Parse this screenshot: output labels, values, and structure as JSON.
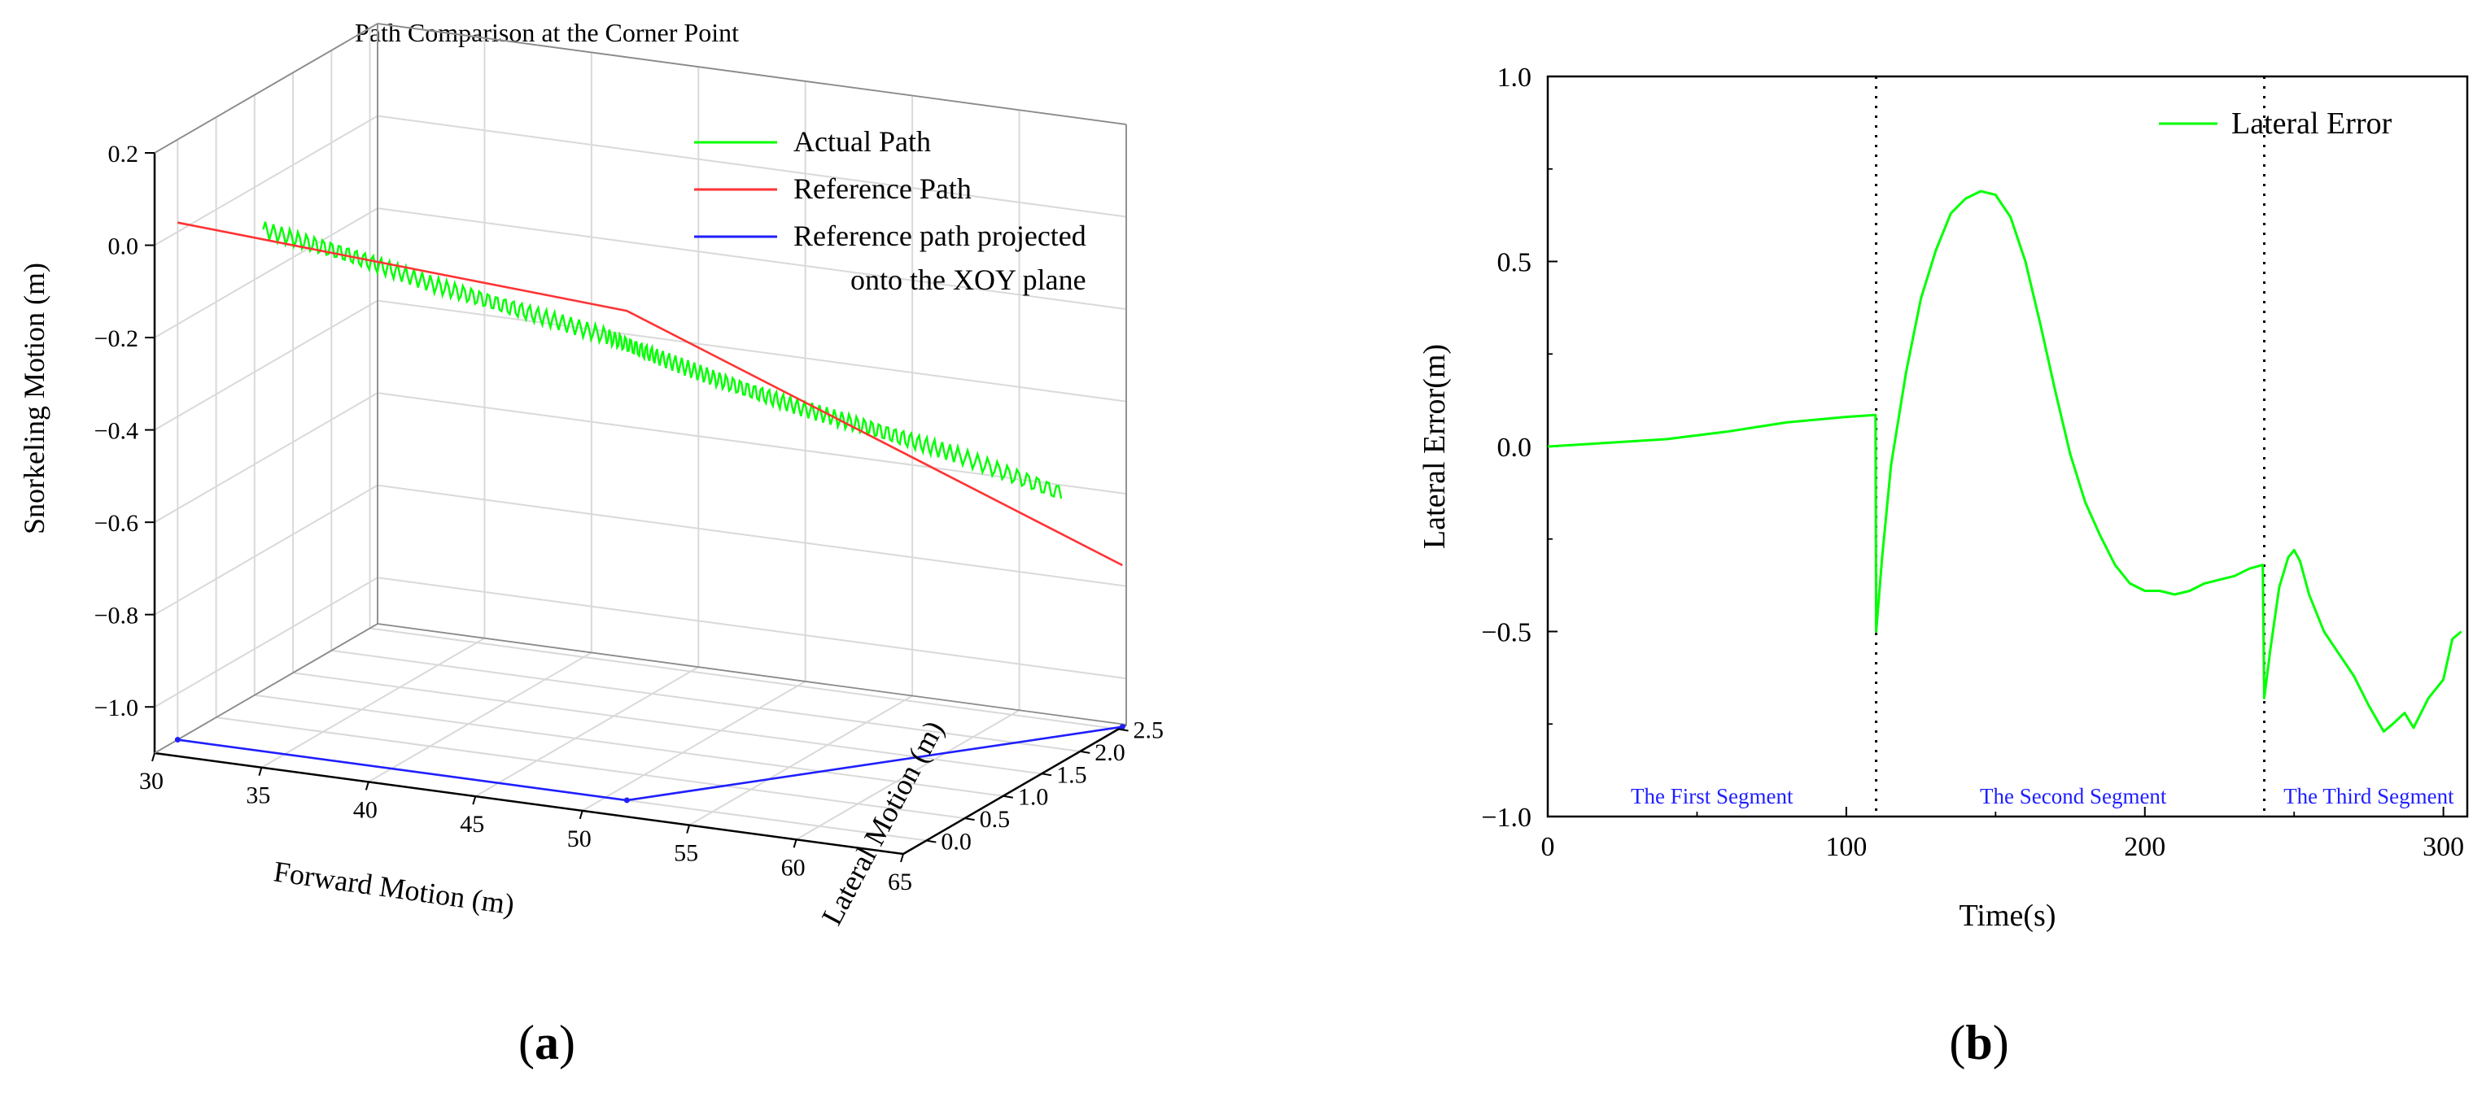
{
  "panels": {
    "a_label_open": "(",
    "a_label_letter": "a",
    "a_label_close": ")",
    "b_label_open": "(",
    "b_label_letter": "b",
    "b_label_close": ")"
  },
  "chart_data": [
    {
      "id": "a",
      "type": "line3d",
      "title": "Path Comparison at the Corner Point",
      "xlabel": "Forward Motion (m)",
      "ylabel": "Lateral Motion (m)",
      "zlabel": "Snorkeling Motion (m)",
      "xlim": [
        30,
        65
      ],
      "ylim": [
        -0.3,
        2.6
      ],
      "zlim": [
        -1.1,
        0.2
      ],
      "xticks": [
        30,
        35,
        40,
        45,
        50,
        55,
        60,
        65
      ],
      "yticks": [
        0.0,
        0.5,
        1.0,
        1.5,
        2.0,
        2.5
      ],
      "zticks": [
        0.2,
        0.0,
        -0.2,
        -0.4,
        -0.6,
        -0.8,
        -1.0
      ],
      "legend_position": "top-right",
      "grid": true,
      "series": [
        {
          "name": "Actual Path",
          "color": "#00ff00",
          "x": [
            34,
            38,
            42,
            46,
            50,
            52,
            54,
            56,
            58,
            60,
            62.5
          ],
          "y": [
            0.0,
            0.0,
            0.0,
            0.0,
            0.0,
            0.15,
            0.45,
            0.85,
            1.3,
            1.8,
            2.45
          ],
          "z": [
            0.03,
            0.0,
            -0.04,
            -0.07,
            -0.1,
            -0.15,
            -0.22,
            -0.3,
            -0.38,
            -0.47,
            -0.6
          ],
          "oscillation_amplitude": 0.018
        },
        {
          "name": "Reference Path",
          "color": "#ff3333",
          "x": [
            30,
            51,
            65
          ],
          "y": [
            0.0,
            0.0,
            2.55
          ],
          "z": [
            0.02,
            -0.04,
            -0.75
          ]
        },
        {
          "name": "Reference path projected onto the XOY plane",
          "color": "#1f1fff",
          "x": [
            30,
            51,
            65
          ],
          "y": [
            0.0,
            0.0,
            2.55
          ],
          "z": [
            -1.1,
            -1.1,
            -1.1
          ]
        }
      ]
    },
    {
      "id": "b",
      "type": "line",
      "title": "",
      "xlabel": "Time(s)",
      "ylabel": "Lateral Error(m)",
      "xlim": [
        0,
        308
      ],
      "ylim": [
        -1.0,
        1.0
      ],
      "xticks": [
        0,
        100,
        200,
        300
      ],
      "yticks": [
        -1.0,
        -0.5,
        0.0,
        0.5,
        1.0
      ],
      "legend_position": "top-right",
      "grid": false,
      "vlines": [
        110,
        240
      ],
      "segment_labels": [
        {
          "text": "The First Segment",
          "x": 55
        },
        {
          "text": "The Second Segment",
          "x": 176
        },
        {
          "text": "The Third Segment",
          "x": 275
        }
      ],
      "series": [
        {
          "name": "Lateral Error",
          "color": "#00ff00",
          "x": [
            0,
            20,
            40,
            60,
            80,
            100,
            109.8,
            110,
            112,
            115,
            120,
            125,
            130,
            135,
            140,
            145,
            150,
            155,
            160,
            165,
            170,
            175,
            180,
            185,
            190,
            195,
            200,
            205,
            210,
            215,
            220,
            225,
            230,
            235,
            239.5,
            240,
            242,
            245,
            248,
            250,
            252,
            255,
            260,
            265,
            270,
            275,
            280,
            283,
            287,
            290,
            295,
            300,
            303,
            306
          ],
          "y": [
            0.0,
            0.01,
            0.02,
            0.04,
            0.065,
            0.08,
            0.085,
            -0.5,
            -0.3,
            -0.05,
            0.2,
            0.4,
            0.53,
            0.63,
            0.67,
            0.69,
            0.68,
            0.62,
            0.5,
            0.33,
            0.15,
            -0.02,
            -0.15,
            -0.24,
            -0.32,
            -0.37,
            -0.39,
            -0.39,
            -0.4,
            -0.39,
            -0.37,
            -0.36,
            -0.35,
            -0.33,
            -0.32,
            -0.68,
            -0.55,
            -0.38,
            -0.3,
            -0.28,
            -0.31,
            -0.4,
            -0.5,
            -0.56,
            -0.62,
            -0.7,
            -0.77,
            -0.75,
            -0.72,
            -0.76,
            -0.68,
            -0.63,
            -0.52,
            -0.5
          ]
        }
      ]
    }
  ]
}
